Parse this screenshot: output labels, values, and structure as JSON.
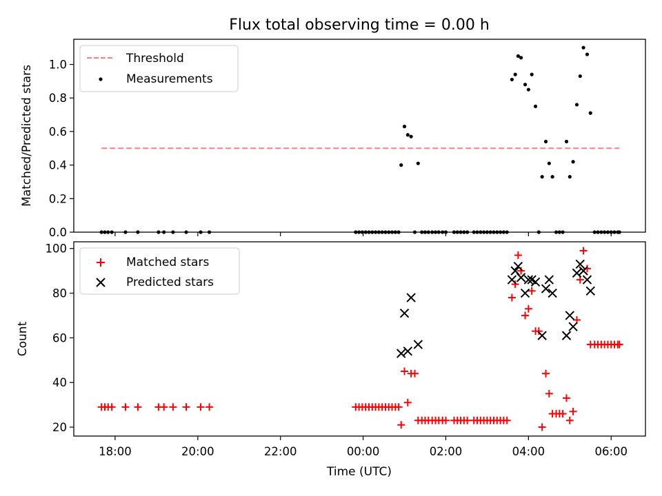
{
  "chart_data": [
    {
      "type": "scatter",
      "title": "Flux total observing time = 0.00 h",
      "xlabel": "",
      "ylabel": "Matched/Predicted stars",
      "xlim": [
        -7.0,
        6.83
      ],
      "ylim": [
        0.0,
        1.15
      ],
      "yticks": [
        0.0,
        0.2,
        0.4,
        0.6,
        0.8,
        1.0
      ],
      "ytick_labels": [
        "0.0",
        "0.2",
        "0.4",
        "0.6",
        "0.8",
        "1.0"
      ],
      "legend": {
        "placement": "top-left",
        "entries": [
          "Threshold",
          "Measurements"
        ]
      },
      "threshold": {
        "name": "Threshold",
        "value": 0.5,
        "x": [
          -6.33,
          6.2
        ],
        "color": "#ff7f7f"
      },
      "measurements": {
        "name": "Measurements",
        "color": "#000000",
        "points": [
          [
            -6.33,
            0
          ],
          [
            -6.25,
            0
          ],
          [
            -6.17,
            0
          ],
          [
            -6.08,
            0
          ],
          [
            -5.75,
            0
          ],
          [
            -5.45,
            0
          ],
          [
            -4.95,
            0
          ],
          [
            -4.82,
            0
          ],
          [
            -4.6,
            0
          ],
          [
            -4.28,
            0
          ],
          [
            -3.93,
            0
          ],
          [
            -3.72,
            0
          ],
          [
            -0.18,
            0
          ],
          [
            -0.1,
            0
          ],
          [
            -0.02,
            0
          ],
          [
            0.06,
            0
          ],
          [
            0.14,
            0
          ],
          [
            0.22,
            0
          ],
          [
            0.3,
            0
          ],
          [
            0.38,
            0
          ],
          [
            0.46,
            0
          ],
          [
            0.54,
            0
          ],
          [
            0.62,
            0
          ],
          [
            0.7,
            0
          ],
          [
            0.78,
            0
          ],
          [
            0.86,
            0
          ],
          [
            0.92,
            0.4
          ],
          [
            1.0,
            0.63
          ],
          [
            1.08,
            0.58
          ],
          [
            1.16,
            0.57
          ],
          [
            1.25,
            0
          ],
          [
            1.33,
            0.41
          ],
          [
            1.42,
            0
          ],
          [
            1.5,
            0
          ],
          [
            1.58,
            0
          ],
          [
            1.67,
            0
          ],
          [
            1.75,
            0
          ],
          [
            1.83,
            0
          ],
          [
            1.92,
            0
          ],
          [
            2.0,
            0
          ],
          [
            2.2,
            0
          ],
          [
            2.28,
            0
          ],
          [
            2.36,
            0
          ],
          [
            2.44,
            0
          ],
          [
            2.52,
            0
          ],
          [
            2.68,
            0
          ],
          [
            2.76,
            0
          ],
          [
            2.84,
            0
          ],
          [
            2.92,
            0
          ],
          [
            3.0,
            0
          ],
          [
            3.08,
            0
          ],
          [
            3.16,
            0
          ],
          [
            3.24,
            0
          ],
          [
            3.32,
            0
          ],
          [
            3.4,
            0
          ],
          [
            3.48,
            0
          ],
          [
            3.6,
            0.91
          ],
          [
            3.68,
            0.94
          ],
          [
            3.75,
            1.05
          ],
          [
            3.82,
            1.04
          ],
          [
            3.92,
            0.88
          ],
          [
            4.0,
            0.85
          ],
          [
            4.08,
            0.94
          ],
          [
            4.17,
            0.75
          ],
          [
            4.25,
            0
          ],
          [
            4.33,
            0.33
          ],
          [
            4.42,
            0.54
          ],
          [
            4.5,
            0.41
          ],
          [
            4.58,
            0.33
          ],
          [
            4.67,
            0
          ],
          [
            4.75,
            0
          ],
          [
            4.83,
            0
          ],
          [
            4.92,
            0.54
          ],
          [
            5.0,
            0.33
          ],
          [
            5.08,
            0.42
          ],
          [
            5.17,
            0.76
          ],
          [
            5.25,
            0.93
          ],
          [
            5.33,
            1.1
          ],
          [
            5.42,
            1.06
          ],
          [
            5.5,
            0.71
          ],
          [
            5.6,
            0
          ],
          [
            5.68,
            0
          ],
          [
            5.76,
            0
          ],
          [
            5.84,
            0
          ],
          [
            5.92,
            0
          ],
          [
            6.0,
            0
          ],
          [
            6.08,
            0
          ],
          [
            6.16,
            0
          ],
          [
            6.2,
            0
          ]
        ]
      }
    },
    {
      "type": "scatter",
      "title": "",
      "xlabel": "Time (UTC)",
      "ylabel": "Count",
      "xlim": [
        -7.0,
        6.83
      ],
      "ylim": [
        16,
        103
      ],
      "yticks": [
        20,
        40,
        60,
        80,
        100
      ],
      "ytick_labels": [
        "20",
        "40",
        "60",
        "80",
        "100"
      ],
      "xticks": [
        -6,
        -4,
        -2,
        0,
        2,
        4,
        6
      ],
      "xtick_labels": [
        "18:00",
        "20:00",
        "22:00",
        "00:00",
        "02:00",
        "04:00",
        "06:00"
      ],
      "legend": {
        "placement": "top-left",
        "entries": [
          "Matched stars",
          "Predicted stars"
        ]
      },
      "series": [
        {
          "name": "Matched stars",
          "marker": "plus",
          "color": "#ff0000",
          "points": [
            [
              -6.33,
              29
            ],
            [
              -6.25,
              29
            ],
            [
              -6.17,
              29
            ],
            [
              -6.08,
              29
            ],
            [
              -5.75,
              29
            ],
            [
              -5.45,
              29
            ],
            [
              -4.95,
              29
            ],
            [
              -4.82,
              29
            ],
            [
              -4.6,
              29
            ],
            [
              -4.28,
              29
            ],
            [
              -3.93,
              29
            ],
            [
              -3.72,
              29
            ],
            [
              -0.18,
              29
            ],
            [
              -0.1,
              29
            ],
            [
              -0.02,
              29
            ],
            [
              0.06,
              29
            ],
            [
              0.14,
              29
            ],
            [
              0.22,
              29
            ],
            [
              0.3,
              29
            ],
            [
              0.38,
              29
            ],
            [
              0.46,
              29
            ],
            [
              0.54,
              29
            ],
            [
              0.62,
              29
            ],
            [
              0.7,
              29
            ],
            [
              0.78,
              29
            ],
            [
              0.86,
              29
            ],
            [
              0.92,
              21
            ],
            [
              1.0,
              45
            ],
            [
              1.08,
              31
            ],
            [
              1.16,
              44
            ],
            [
              1.25,
              44
            ],
            [
              1.33,
              23
            ],
            [
              1.42,
              23
            ],
            [
              1.5,
              23
            ],
            [
              1.58,
              23
            ],
            [
              1.67,
              23
            ],
            [
              1.75,
              23
            ],
            [
              1.83,
              23
            ],
            [
              1.92,
              23
            ],
            [
              2.0,
              23
            ],
            [
              2.2,
              23
            ],
            [
              2.28,
              23
            ],
            [
              2.36,
              23
            ],
            [
              2.44,
              23
            ],
            [
              2.52,
              23
            ],
            [
              2.68,
              23
            ],
            [
              2.76,
              23
            ],
            [
              2.84,
              23
            ],
            [
              2.92,
              23
            ],
            [
              3.0,
              23
            ],
            [
              3.08,
              23
            ],
            [
              3.16,
              23
            ],
            [
              3.24,
              23
            ],
            [
              3.32,
              23
            ],
            [
              3.4,
              23
            ],
            [
              3.48,
              23
            ],
            [
              3.6,
              78
            ],
            [
              3.68,
              84
            ],
            [
              3.75,
              97
            ],
            [
              3.82,
              90
            ],
            [
              3.92,
              70
            ],
            [
              4.0,
              73
            ],
            [
              4.08,
              81
            ],
            [
              4.17,
              63
            ],
            [
              4.25,
              63
            ],
            [
              4.33,
              20
            ],
            [
              4.42,
              44
            ],
            [
              4.5,
              35
            ],
            [
              4.58,
              26
            ],
            [
              4.67,
              26
            ],
            [
              4.75,
              26
            ],
            [
              4.83,
              26
            ],
            [
              4.92,
              33
            ],
            [
              5.0,
              23
            ],
            [
              5.08,
              27
            ],
            [
              5.17,
              68
            ],
            [
              5.25,
              86
            ],
            [
              5.33,
              99
            ],
            [
              5.42,
              91
            ],
            [
              5.5,
              57
            ],
            [
              5.6,
              57
            ],
            [
              5.68,
              57
            ],
            [
              5.76,
              57
            ],
            [
              5.84,
              57
            ],
            [
              5.92,
              57
            ],
            [
              6.0,
              57
            ],
            [
              6.08,
              57
            ],
            [
              6.16,
              57
            ],
            [
              6.2,
              57
            ]
          ]
        },
        {
          "name": "Predicted stars",
          "marker": "x",
          "color": "#000000",
          "points": [
            [
              0.92,
              53
            ],
            [
              1.0,
              71
            ],
            [
              1.08,
              54
            ],
            [
              1.16,
              78
            ],
            [
              1.33,
              57
            ],
            [
              3.6,
              86
            ],
            [
              3.68,
              90
            ],
            [
              3.75,
              92
            ],
            [
              3.82,
              87
            ],
            [
              3.92,
              80
            ],
            [
              4.0,
              86
            ],
            [
              4.08,
              86
            ],
            [
              4.17,
              85
            ],
            [
              4.33,
              61
            ],
            [
              4.42,
              82
            ],
            [
              4.5,
              86
            ],
            [
              4.58,
              80
            ],
            [
              4.92,
              61
            ],
            [
              5.0,
              70
            ],
            [
              5.08,
              65
            ],
            [
              5.17,
              89
            ],
            [
              5.25,
              93
            ],
            [
              5.33,
              90
            ],
            [
              5.42,
              86
            ],
            [
              5.5,
              81
            ]
          ]
        }
      ]
    }
  ]
}
